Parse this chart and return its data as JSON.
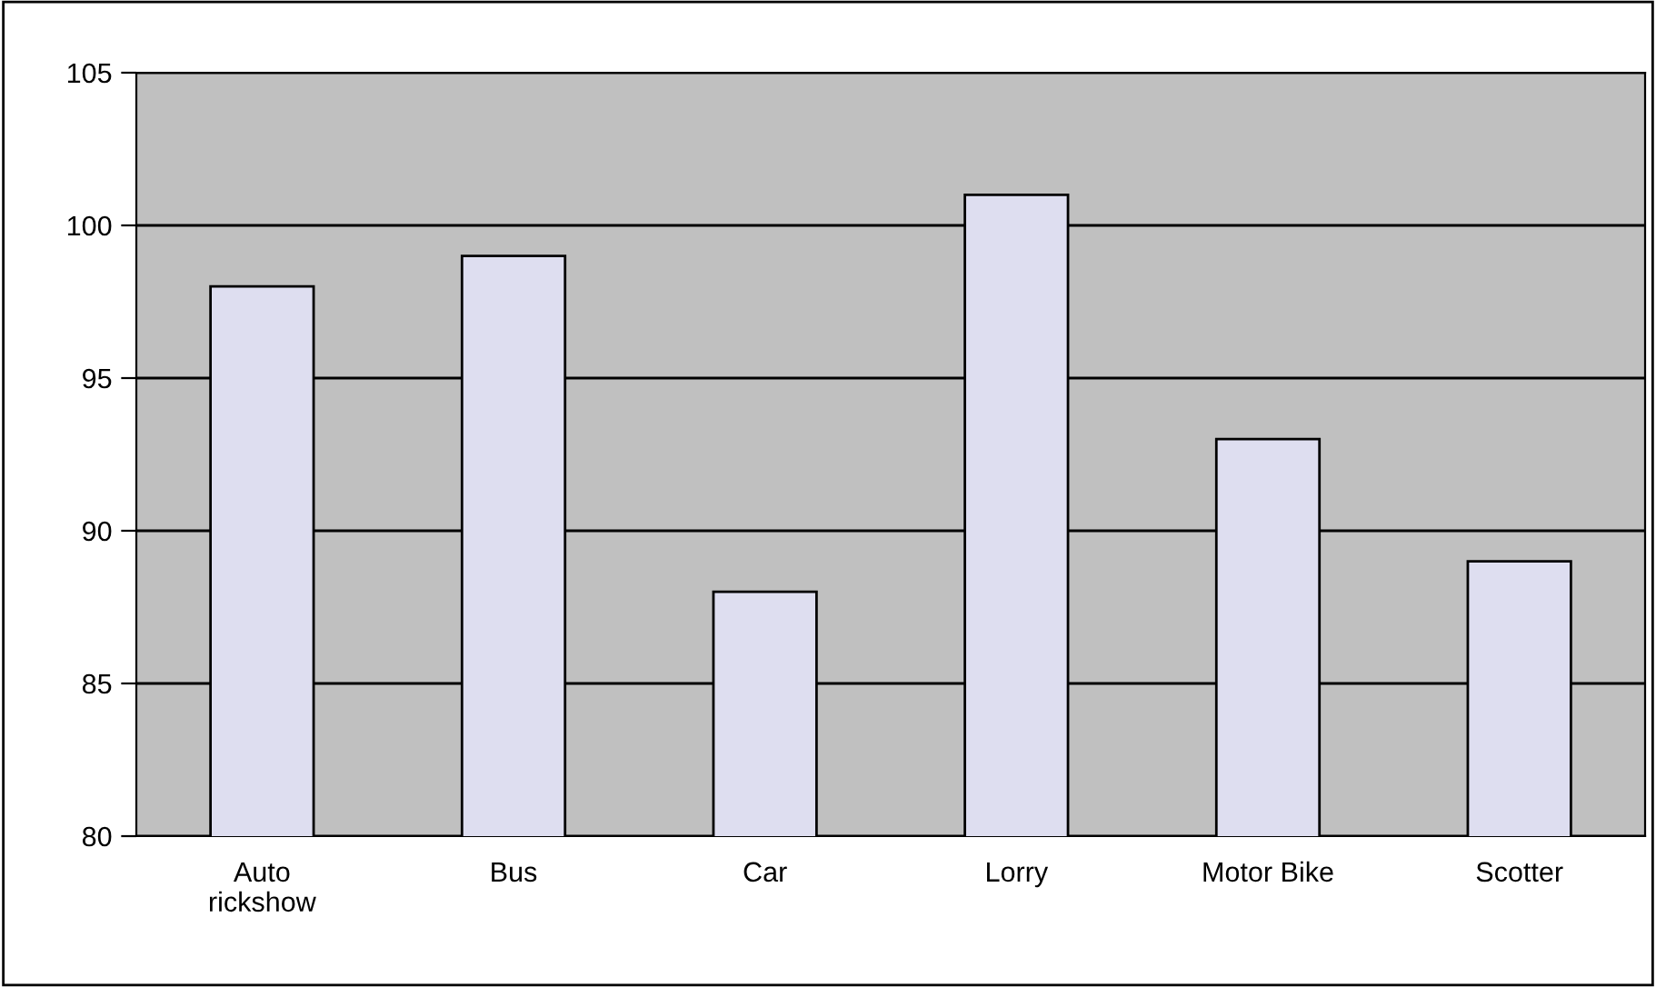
{
  "chart_data": {
    "type": "bar",
    "categories": [
      "Auto\nrickshow",
      "Bus",
      "Car",
      "Lorry",
      "Motor Bike",
      "Scotter"
    ],
    "values": [
      98,
      99,
      88,
      101,
      93,
      89
    ],
    "color": "#dedef0",
    "ylim": [
      80,
      105
    ],
    "yticks": [
      80,
      85,
      90,
      95,
      100,
      105
    ],
    "grid": "y"
  }
}
